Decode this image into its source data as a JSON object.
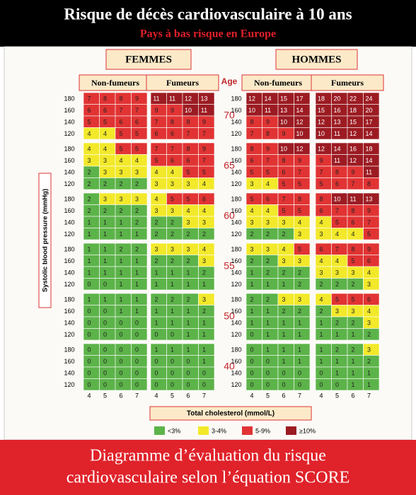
{
  "header": {
    "title": "Risque de décès cardiovasculaire à 10 ans",
    "subtitle": "Pays à bas risque en Europe"
  },
  "sexes": [
    {
      "label": "FEMMES",
      "groups": [
        {
          "label": "Non-fumeurs",
          "values": [
            [
              [
                7,
                8,
                8,
                9
              ],
              [
                6,
                6,
                7,
                7
              ],
              [
                5,
                5,
                6,
                6
              ],
              [
                4,
                4,
                5,
                5
              ]
            ],
            [
              [
                4,
                4,
                5,
                5
              ],
              [
                3,
                3,
                4,
                4
              ],
              [
                2,
                3,
                3,
                3
              ],
              [
                2,
                2,
                2,
                2
              ]
            ],
            [
              [
                2,
                3,
                3,
                3
              ],
              [
                2,
                2,
                2,
                2
              ],
              [
                1,
                1,
                1,
                2
              ],
              [
                1,
                1,
                1,
                1
              ]
            ],
            [
              [
                1,
                1,
                2,
                2
              ],
              [
                1,
                1,
                1,
                1
              ],
              [
                1,
                1,
                1,
                1
              ],
              [
                0,
                0,
                1,
                1
              ]
            ],
            [
              [
                1,
                1,
                1,
                1
              ],
              [
                0,
                0,
                1,
                1
              ],
              [
                0,
                0,
                0,
                0
              ],
              [
                0,
                0,
                0,
                0
              ]
            ],
            [
              [
                0,
                0,
                0,
                0
              ],
              [
                0,
                0,
                0,
                0
              ],
              [
                0,
                0,
                0,
                0
              ],
              [
                0,
                0,
                0,
                0
              ]
            ]
          ]
        },
        {
          "label": "Fumeurs",
          "values": [
            [
              [
                11,
                11,
                12,
                13
              ],
              [
                9,
                9,
                10,
                11
              ],
              [
                7,
                8,
                8,
                9
              ],
              [
                6,
                6,
                7,
                7
              ]
            ],
            [
              [
                7,
                7,
                8,
                9
              ],
              [
                5,
                6,
                6,
                7
              ],
              [
                4,
                4,
                5,
                5
              ],
              [
                3,
                3,
                3,
                4
              ]
            ],
            [
              [
                4,
                5,
                5,
                6
              ],
              [
                3,
                3,
                4,
                4
              ],
              [
                2,
                2,
                3,
                3
              ],
              [
                2,
                2,
                2,
                2
              ]
            ],
            [
              [
                3,
                3,
                3,
                4
              ],
              [
                2,
                2,
                2,
                3
              ],
              [
                1,
                1,
                1,
                2
              ],
              [
                1,
                1,
                1,
                1
              ]
            ],
            [
              [
                2,
                2,
                2,
                3
              ],
              [
                1,
                1,
                1,
                2
              ],
              [
                1,
                1,
                1,
                1
              ],
              [
                0,
                0,
                1,
                1
              ]
            ],
            [
              [
                1,
                1,
                1,
                1
              ],
              [
                0,
                0,
                0,
                1
              ],
              [
                0,
                0,
                0,
                0
              ],
              [
                0,
                0,
                0,
                0
              ]
            ]
          ]
        }
      ]
    },
    {
      "label": "HOMMES",
      "groups": [
        {
          "label": "Non-fumeurs",
          "values": [
            [
              [
                12,
                14,
                15,
                17
              ],
              [
                10,
                11,
                13,
                14
              ],
              [
                8,
                9,
                10,
                12
              ],
              [
                7,
                8,
                9,
                10
              ]
            ],
            [
              [
                8,
                9,
                10,
                12
              ],
              [
                6,
                7,
                8,
                9
              ],
              [
                5,
                5,
                6,
                7
              ],
              [
                3,
                4,
                5,
                5
              ]
            ],
            [
              [
                5,
                6,
                7,
                8
              ],
              [
                4,
                4,
                5,
                5
              ],
              [
                3,
                3,
                3,
                4
              ],
              [
                2,
                2,
                2,
                3
              ]
            ],
            [
              [
                3,
                3,
                4,
                5
              ],
              [
                2,
                2,
                3,
                3
              ],
              [
                1,
                2,
                2,
                2
              ],
              [
                1,
                1,
                1,
                2
              ]
            ],
            [
              [
                2,
                2,
                3,
                3
              ],
              [
                1,
                1,
                2,
                2
              ],
              [
                1,
                1,
                1,
                1
              ],
              [
                0,
                1,
                1,
                1
              ]
            ],
            [
              [
                0,
                1,
                1,
                1
              ],
              [
                0,
                0,
                1,
                1
              ],
              [
                0,
                0,
                0,
                0
              ],
              [
                0,
                0,
                0,
                0
              ]
            ]
          ]
        },
        {
          "label": "Fumeurs",
          "values": [
            [
              [
                18,
                20,
                22,
                24
              ],
              [
                15,
                16,
                18,
                20
              ],
              [
                12,
                13,
                15,
                17
              ],
              [
                10,
                11,
                12,
                14
              ]
            ],
            [
              [
                12,
                14,
                16,
                18
              ],
              [
                9,
                11,
                12,
                14
              ],
              [
                7,
                8,
                9,
                11
              ],
              [
                5,
                6,
                7,
                8
              ]
            ],
            [
              [
                8,
                10,
                11,
                13
              ],
              [
                6,
                7,
                8,
                9
              ],
              [
                4,
                5,
                6,
                7
              ],
              [
                3,
                4,
                4,
                5
              ]
            ],
            [
              [
                6,
                7,
                8,
                9
              ],
              [
                4,
                4,
                5,
                6
              ],
              [
                3,
                3,
                3,
                4
              ],
              [
                2,
                2,
                2,
                3
              ]
            ],
            [
              [
                4,
                5,
                5,
                6
              ],
              [
                2,
                3,
                3,
                4
              ],
              [
                1,
                2,
                2,
                3
              ],
              [
                1,
                1,
                1,
                2
              ]
            ],
            [
              [
                1,
                2,
                2,
                3
              ],
              [
                1,
                1,
                1,
                2
              ],
              [
                0,
                1,
                1,
                1
              ],
              [
                0,
                0,
                1,
                1
              ]
            ]
          ]
        }
      ]
    }
  ],
  "age_label": "Age",
  "ages": [
    70,
    65,
    60,
    55,
    50,
    40
  ],
  "sbp": [
    180,
    160,
    140,
    120
  ],
  "cholesterol": [
    4,
    5,
    6,
    7
  ],
  "y_label": "Systolic blood pressure (mmHg)",
  "x_label": "Total cholesterol (mmol/L)",
  "legend": [
    {
      "label": "<3%",
      "color": "#5cb349"
    },
    {
      "label": "3-4%",
      "color": "#f2e92a"
    },
    {
      "label": "5-9%",
      "color": "#e13333"
    },
    {
      "label": "≥10%",
      "color": "#9c1b22"
    }
  ],
  "footer": [
    "Diagramme d’évaluation du risque",
    "cardiovasculaire selon l’équation SCORE"
  ]
}
